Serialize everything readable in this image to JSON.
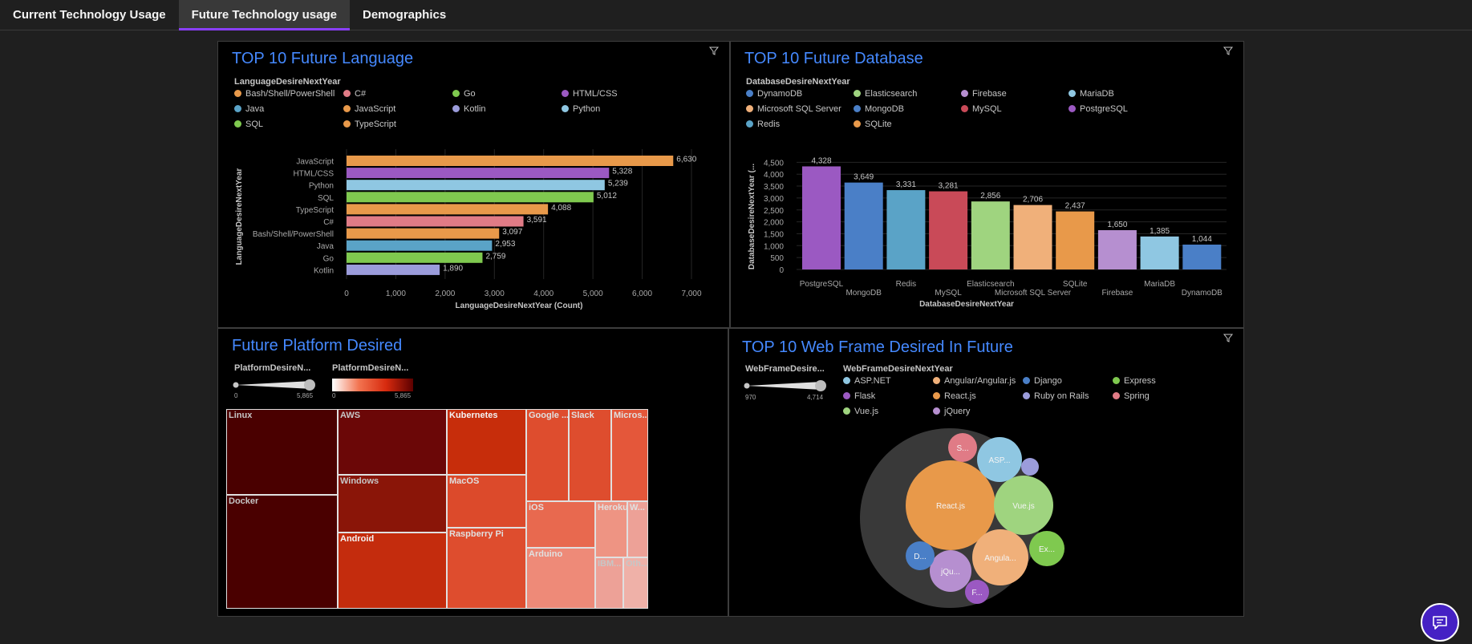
{
  "tabs": [
    {
      "label": "Current Technology Usage"
    },
    {
      "label": "Future Technology usage"
    },
    {
      "label": "Demographics"
    }
  ],
  "panels": {
    "language": {
      "title": "TOP 10 Future Language",
      "legend_title": "LanguageDesireNextYear",
      "legend": [
        {
          "label": "Bash/Shell/PowerShell",
          "color": "#e8994a"
        },
        {
          "label": "C#",
          "color": "#e07b86"
        },
        {
          "label": "Go",
          "color": "#7fc94f"
        },
        {
          "label": "HTML/CSS",
          "color": "#9b59c2"
        },
        {
          "label": "Java",
          "color": "#5aa3c7"
        },
        {
          "label": "JavaScript",
          "color": "#e8994a"
        },
        {
          "label": "Kotlin",
          "color": "#9b9cdb"
        },
        {
          "label": "Python",
          "color": "#8fc7e2"
        },
        {
          "label": "SQL",
          "color": "#7fc94f"
        },
        {
          "label": "TypeScript",
          "color": "#e8994a"
        }
      ]
    },
    "database": {
      "title": "TOP 10 Future Database",
      "legend_title": "DatabaseDesireNextYear",
      "legend": [
        {
          "label": "DynamoDB",
          "color": "#4a7fc7"
        },
        {
          "label": "Elasticsearch",
          "color": "#9fd47f"
        },
        {
          "label": "Firebase",
          "color": "#b68fd0"
        },
        {
          "label": "MariaDB",
          "color": "#8fc7e2"
        },
        {
          "label": "Microsoft SQL Server",
          "color": "#f0b07a"
        },
        {
          "label": "MongoDB",
          "color": "#4a7fc7"
        },
        {
          "label": "MySQL",
          "color": "#c94a58"
        },
        {
          "label": "PostgreSQL",
          "color": "#9b59c2"
        },
        {
          "label": "Redis",
          "color": "#5aa3c7"
        },
        {
          "label": "SQLite",
          "color": "#e8994a"
        }
      ]
    },
    "platform": {
      "title": "Future Platform Desired",
      "size_legend_title": "PlatformDesireN...",
      "color_legend_title": "PlatformDesireN...",
      "range_min": "0",
      "range_max": "5,865",
      "tiles": [
        {
          "label": "Linux"
        },
        {
          "label": "Docker"
        },
        {
          "label": "AWS"
        },
        {
          "label": "Windows"
        },
        {
          "label": "Android"
        },
        {
          "label": "Kubernetes"
        },
        {
          "label": "MacOS"
        },
        {
          "label": "Raspberry Pi"
        },
        {
          "label": "Google ..."
        },
        {
          "label": "Slack"
        },
        {
          "label": "Micros..."
        },
        {
          "label": "iOS"
        },
        {
          "label": "Heroku"
        },
        {
          "label": "W..."
        },
        {
          "label": "Arduino"
        },
        {
          "label": "IBM..."
        },
        {
          "label": "Oth..."
        }
      ]
    },
    "webframe": {
      "title": "TOP 10 Web Frame Desired In Future",
      "size_legend_title": "WebFrameDesire...",
      "legend_title": "WebFrameDesireNextYear",
      "range_min": "970",
      "range_max": "4,714",
      "legend": [
        {
          "label": "ASP.NET",
          "color": "#8fc7e2"
        },
        {
          "label": "Angular/Angular.js",
          "color": "#f0b07a"
        },
        {
          "label": "Django",
          "color": "#4a7fc7"
        },
        {
          "label": "Express",
          "color": "#7fc94f"
        },
        {
          "label": "Flask",
          "color": "#9b59c2"
        },
        {
          "label": "React.js",
          "color": "#e8994a"
        },
        {
          "label": "Ruby on Rails",
          "color": "#9b9cdb"
        },
        {
          "label": "Spring",
          "color": "#e07b86"
        },
        {
          "label": "Vue.js",
          "color": "#9fd47f"
        },
        {
          "label": "jQuery",
          "color": "#b68fd0"
        }
      ],
      "bubbles": [
        {
          "label": "React.js"
        },
        {
          "label": "Vue.js"
        },
        {
          "label": "Angula..."
        },
        {
          "label": "ASP..."
        },
        {
          "label": "jQu..."
        },
        {
          "label": "Ex..."
        },
        {
          "label": "S..."
        },
        {
          "label": "D..."
        },
        {
          "label": "F..."
        },
        {
          "label": ""
        }
      ]
    }
  },
  "chart_data": [
    {
      "type": "bar",
      "orientation": "horizontal",
      "title": "TOP 10 Future Language",
      "xlabel": "LanguageDesireNextYear (Count)",
      "ylabel": "LanguageDesireNextYear",
      "categories": [
        "JavaScript",
        "HTML/CSS",
        "Python",
        "SQL",
        "TypeScript",
        "C#",
        "Bash/Shell/PowerShell",
        "Java",
        "Go",
        "Kotlin"
      ],
      "values": [
        6630,
        5328,
        5239,
        5012,
        4088,
        3591,
        3097,
        2953,
        2759,
        1890
      ],
      "value_labels": [
        "6,630",
        "5,328",
        "5,239",
        "5,012",
        "4,088",
        "3,591",
        "3,097",
        "2,953",
        "2,759",
        "1,890"
      ],
      "colors": [
        "#e8994a",
        "#9b59c2",
        "#8fc7e2",
        "#7fc94f",
        "#e8994a",
        "#e07b86",
        "#e8994a",
        "#5aa3c7",
        "#7fc94f",
        "#9b9cdb"
      ],
      "xlim": [
        0,
        7000
      ],
      "ticks": [
        "0",
        "1,000",
        "2,000",
        "3,000",
        "4,000",
        "5,000",
        "6,000",
        "7,000"
      ],
      "grid": true
    },
    {
      "type": "bar",
      "orientation": "vertical",
      "title": "TOP 10 Future Database",
      "xlabel": "DatabaseDesireNextYear",
      "ylabel": "DatabaseDesireNextYear (...",
      "categories": [
        "PostgreSQL",
        "MongoDB",
        "Redis",
        "MySQL",
        "Elasticsearch",
        "Microsoft SQL Server",
        "SQLite",
        "Firebase",
        "MariaDB",
        "DynamoDB"
      ],
      "values": [
        4328,
        3649,
        3331,
        3281,
        2856,
        2706,
        2437,
        1650,
        1385,
        1044
      ],
      "value_labels": [
        "4,328",
        "3,649",
        "3,331",
        "3,281",
        "2,856",
        "2,706",
        "2,437",
        "1,650",
        "1,385",
        "1,044"
      ],
      "colors": [
        "#9b59c2",
        "#4a7fc7",
        "#5aa3c7",
        "#c94a58",
        "#9fd47f",
        "#f0b07a",
        "#e8994a",
        "#b68fd0",
        "#8fc7e2",
        "#4a7fc7"
      ],
      "ylim": [
        0,
        4800
      ],
      "ticks": [
        "0",
        "500",
        "1,000",
        "1,500",
        "2,000",
        "2,500",
        "3,000",
        "3,500",
        "4,000",
        "4,500"
      ],
      "grid": true
    }
  ]
}
